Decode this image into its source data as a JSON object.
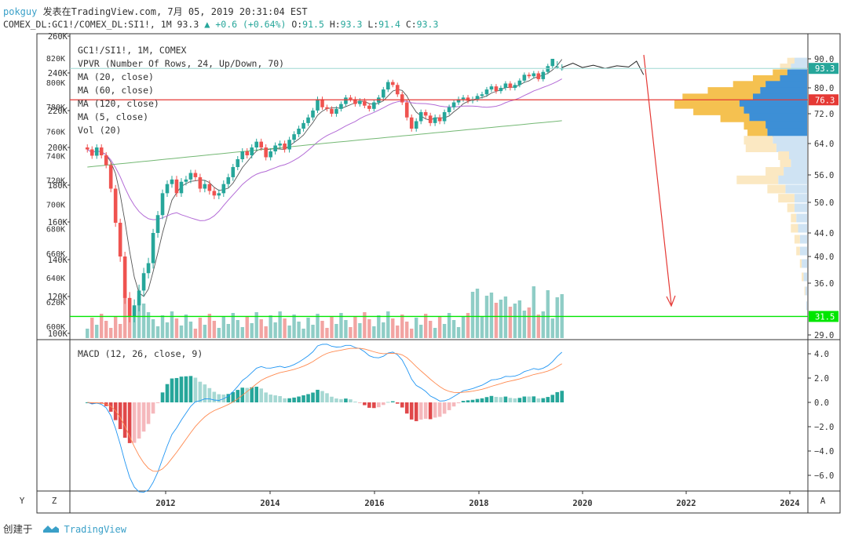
{
  "header": {
    "user": "pokguy",
    "published": "发表在TradingView.com, 7月 05, 2019 20:31:04 EST",
    "symbol_line": "COMEX_DL:GC1!/COMEX_DL:SI1!, 1M 93.3",
    "change": "+0.6 (+0.64%)",
    "o_label": "O:",
    "o_value": "91.5",
    "h_label": "H:",
    "h_value": "93.3",
    "l_label": "L:",
    "l_value": "91.4",
    "c_label": "C:",
    "c_value": "93.3"
  },
  "legend": [
    "GC1!/SI1!, 1M, COMEX",
    "VPVR (Number Of Rows, 24, Up/Down, 70)",
    "MA (20, close)",
    "MA (60, close)",
    "MA (120, close)",
    "MA (5, close)",
    "Vol (20)"
  ],
  "macd_label": "MACD (12, 26, close, 9)",
  "price_badges": {
    "last": "93.3",
    "red_line": "76.3",
    "green_line": "31.5"
  },
  "bottom": {
    "y_btn": "Y",
    "z_btn": "Z",
    "a_btn": "A"
  },
  "footer": {
    "created": "创建于",
    "brand": "TradingView"
  },
  "colors": {
    "up": "#26a69a",
    "down": "#ef5350",
    "ma20": "#333333",
    "ma60": "#b36bd6",
    "ma120": "#74b874",
    "macd": "#2196f3",
    "signal": "#ff8a50",
    "vp_up": "#3d8fd6",
    "vp_down": "#f5c150",
    "red_line": "#e53935",
    "green_line": "#00e600"
  },
  "chart_data": {
    "type": "candlestick",
    "x_ticks": [
      "2012",
      "2014",
      "2016",
      "2018",
      "2020",
      "2022",
      "2024"
    ],
    "right_ticks": [
      "90.0",
      "80.0",
      "72.0",
      "64.0",
      "56.0",
      "50.0",
      "44.0",
      "40.0",
      "36.0",
      "29.0"
    ],
    "right_tick_values": [
      90,
      80,
      72,
      64,
      56,
      50,
      44,
      40,
      36,
      29
    ],
    "vol_ticks": [
      "820K",
      "800K",
      "780K",
      "760K",
      "740K",
      "720K",
      "700K",
      "680K",
      "660K",
      "640K",
      "620K",
      "600K"
    ],
    "left_ticks": [
      "260K",
      "240K",
      "220K",
      "200K",
      "180K",
      "160K",
      "140K",
      "120K",
      "100K"
    ],
    "macd_ticks": [
      "4.0",
      "2.0",
      "0.0",
      "−2.0",
      "−4.0",
      "−6.0"
    ],
    "macd_tick_values": [
      4,
      2,
      0,
      -2,
      -4,
      -6
    ],
    "ratio_closes": [
      62.5,
      60.9,
      63.0,
      61.0,
      58.5,
      53.0,
      46.0,
      40.0,
      34.0,
      31.5,
      33.0,
      35.0,
      37.5,
      39.0,
      44.0,
      47.5,
      52.0,
      54.0,
      55.0,
      52.0,
      54.5,
      55.0,
      56.5,
      55.5,
      53.0,
      54.0,
      52.5,
      51.5,
      52.0,
      54.0,
      55.5,
      58.0,
      60.0,
      62.0,
      61.0,
      63.0,
      64.5,
      63.0,
      60.5,
      62.0,
      63.5,
      64.0,
      62.5,
      65.0,
      66.5,
      68.0,
      69.5,
      71.0,
      73.0,
      76.5,
      74.0,
      73.5,
      72.0,
      73.5,
      75.0,
      77.0,
      76.5,
      75.0,
      76.0,
      74.5,
      73.5,
      75.5,
      77.0,
      79.5,
      82.0,
      81.0,
      78.0,
      75.5,
      71.0,
      68.0,
      70.0,
      72.5,
      71.5,
      69.5,
      71.0,
      70.0,
      72.5,
      74.0,
      75.5,
      76.5,
      77.0,
      76.0,
      76.5,
      77.5,
      78.0,
      79.5,
      80.5,
      79.0,
      80.0,
      81.5,
      80.0,
      81.0,
      82.5,
      84.5,
      84.0,
      85.0,
      83.0,
      85.5,
      87.5,
      90.0,
      92.7,
      93.3
    ],
    "forecast_line": "flat near 93 into early 2021",
    "vpvr_levels": [
      93,
      91,
      89,
      87,
      85,
      83,
      81,
      79,
      77,
      75,
      73,
      71,
      69,
      67,
      65,
      63,
      61,
      59,
      57,
      55,
      53,
      51,
      49,
      47,
      45,
      43,
      41,
      39,
      37,
      35,
      33
    ],
    "vpvr_up": [
      8,
      12,
      14,
      18,
      22,
      30,
      46,
      52,
      60,
      75,
      70,
      64,
      46,
      44,
      38,
      34,
      20,
      18,
      26,
      32,
      24,
      14,
      14,
      12,
      10,
      8,
      8,
      6,
      4,
      2,
      1
    ],
    "vpvr_down": [
      3,
      5,
      8,
      12,
      16,
      30,
      36,
      58,
      78,
      72,
      56,
      32,
      24,
      22,
      32,
      34,
      12,
      12,
      20,
      46,
      20,
      18,
      8,
      6,
      8,
      6,
      4,
      2,
      2,
      1,
      0
    ],
    "red_hline": 76.3,
    "green_hline": 31.5,
    "arrow": "red arrow from late 2020 near 91 down to about 33 in late 2021",
    "date_range": [
      "2010-07",
      "2019-07"
    ]
  }
}
